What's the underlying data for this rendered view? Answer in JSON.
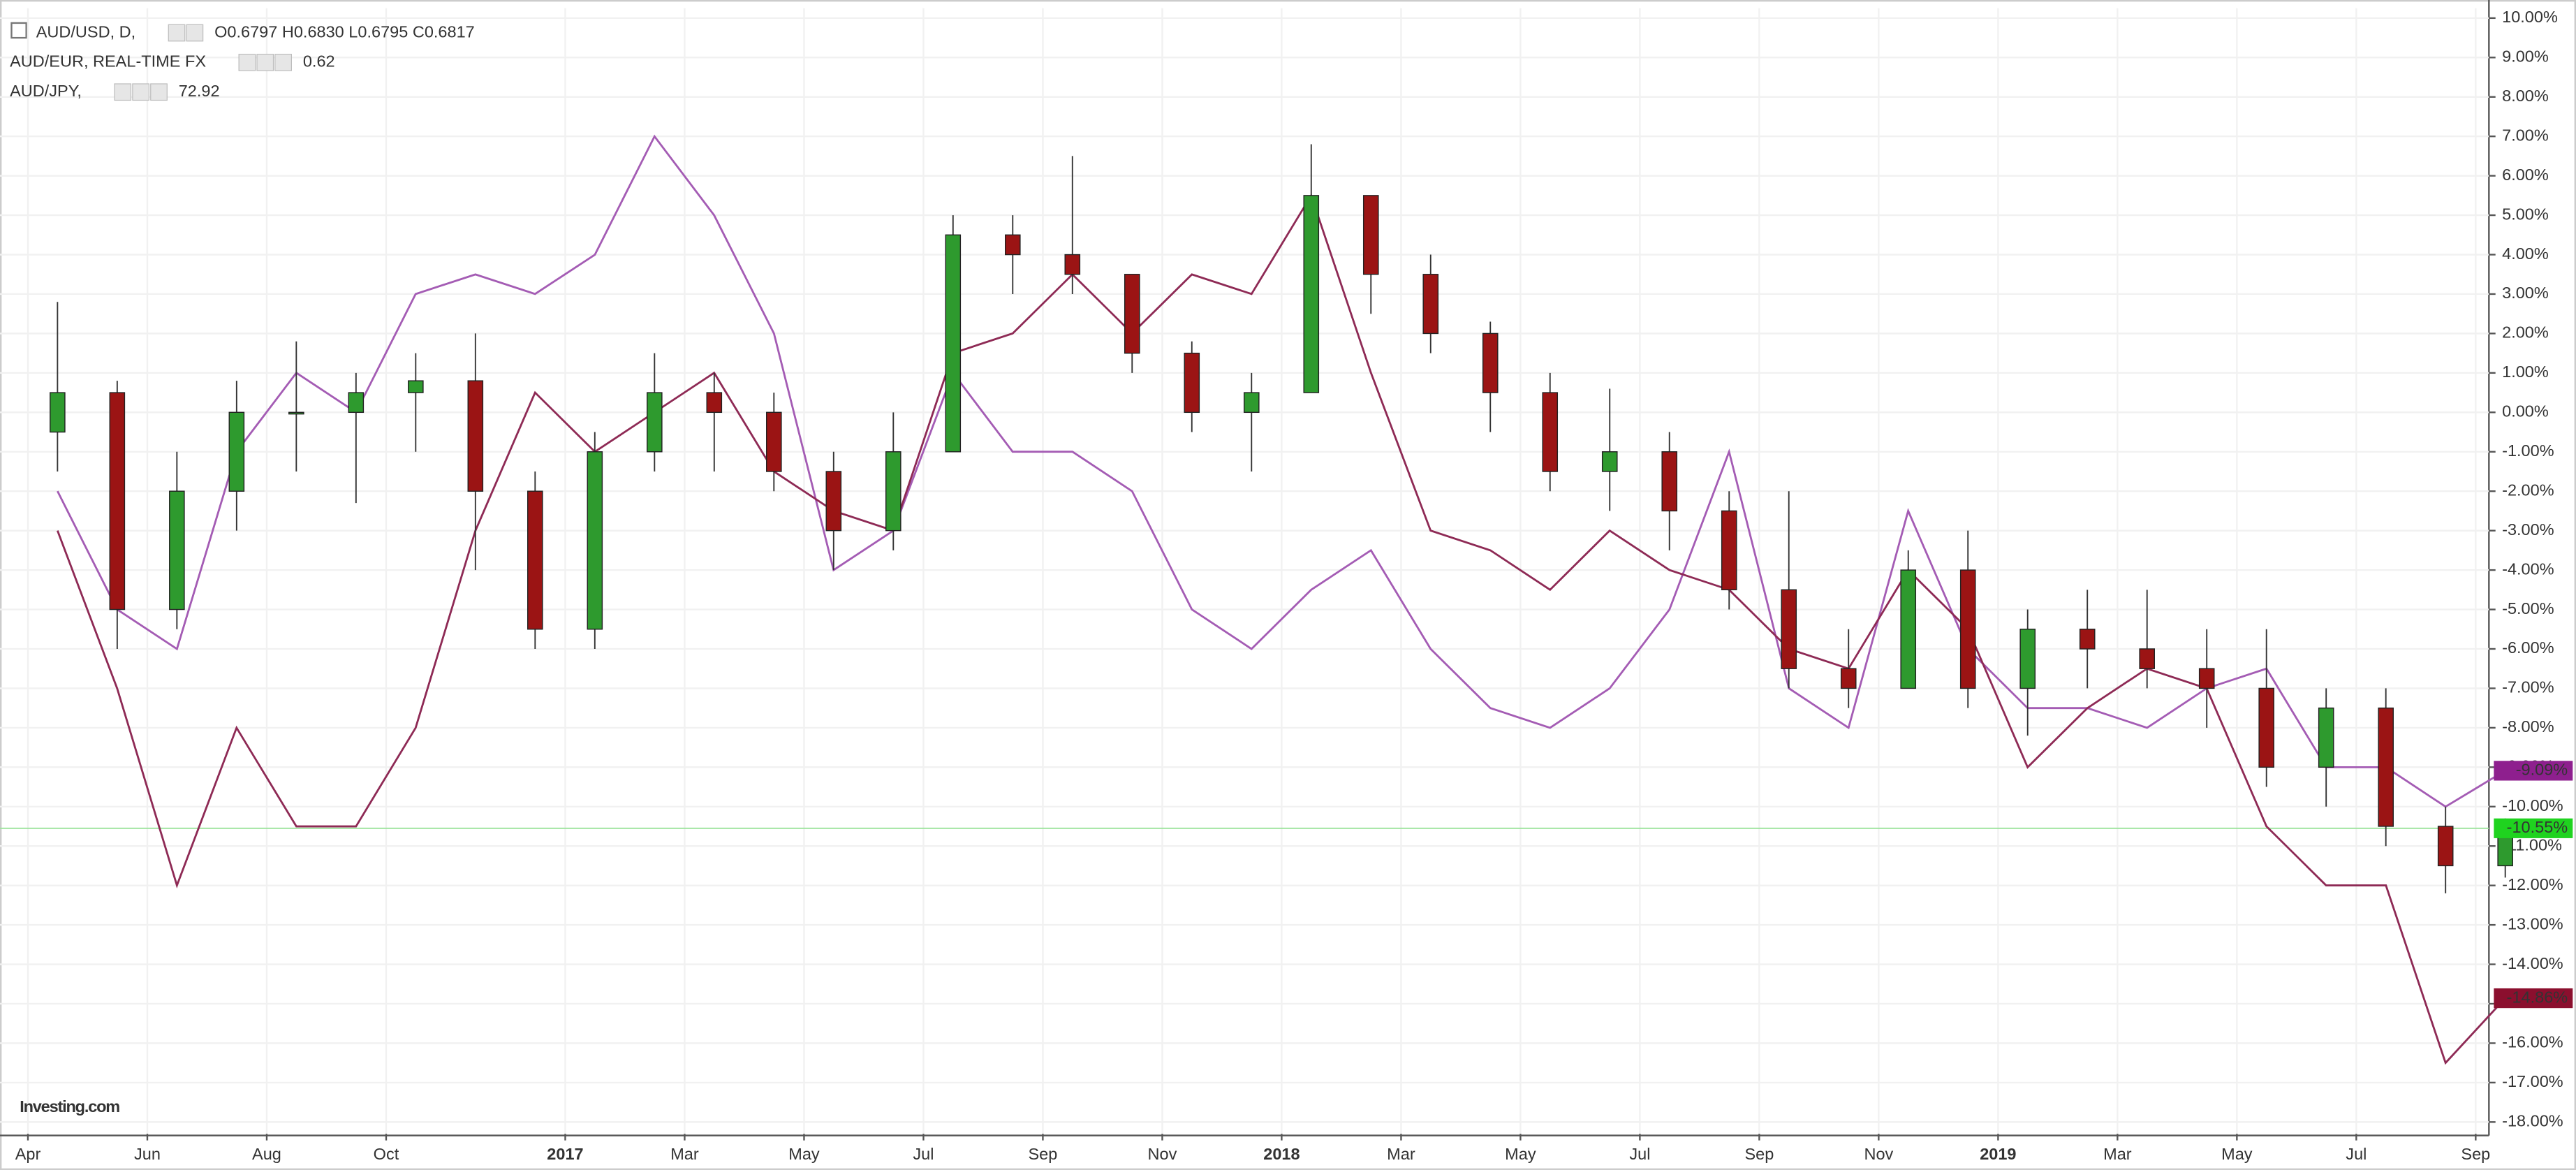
{
  "chart_data": {
    "type": "candlestick",
    "header": [
      {
        "label": "AUD/USD, D,",
        "quote": "O0.6797 H0.6830 L0.6795 C0.6817",
        "color": "#1b4d1b"
      },
      {
        "label": "AUD/EUR, REAL-TIME FX",
        "quote": "0.62",
        "color": "#8e3e9e"
      },
      {
        "label": "AUD/JPY,",
        "quote": "72.92",
        "color": "#7a1030"
      }
    ],
    "logo": "Investing.com",
    "x": [
      "2016-04",
      "2016-05",
      "2016-06",
      "2016-07",
      "2016-08",
      "2016-09",
      "2016-10",
      "2016-11",
      "2016-12",
      "2017-01",
      "2017-02",
      "2017-03",
      "2017-04",
      "2017-05",
      "2017-06",
      "2017-07",
      "2017-08",
      "2017-09",
      "2017-10",
      "2017-11",
      "2017-12",
      "2018-01",
      "2018-02",
      "2018-03",
      "2018-04",
      "2018-05",
      "2018-06",
      "2018-07",
      "2018-08",
      "2018-09",
      "2018-10",
      "2018-11",
      "2018-12",
      "2019-01",
      "2019-02",
      "2019-03",
      "2019-04",
      "2019-05",
      "2019-06",
      "2019-07",
      "2019-08",
      "2019-09"
    ],
    "candles": {
      "up_color": "#2e9a2e",
      "down_color": "#9b1414",
      "open": [
        -0.5,
        0.5,
        -5,
        -2,
        0,
        0,
        0.5,
        0.8,
        -2,
        -5.5,
        -1,
        0.5,
        0,
        -1.5,
        -3,
        -1,
        4.5,
        4,
        3.5,
        1.5,
        0,
        0.5,
        5.5,
        3.5,
        2,
        0.5,
        -1.5,
        -1,
        -2.5,
        -4.5,
        -6.5,
        -7,
        -4,
        -7,
        -5.5,
        -6,
        -6.5,
        -7,
        -9,
        -7.5,
        -10.5,
        -11.5
      ],
      "high": [
        2.8,
        0.8,
        -1,
        0.8,
        1.8,
        1,
        1.5,
        2,
        -1.5,
        -0.5,
        1.5,
        1,
        0.5,
        -1,
        0,
        5,
        5,
        6.5,
        3.5,
        1.8,
        1,
        6.8,
        5.5,
        4,
        2.3,
        1,
        0.6,
        -0.5,
        -2,
        -2,
        -5.5,
        -3.5,
        -3,
        -5,
        -4.5,
        -4.5,
        -5.5,
        -5.5,
        -7,
        -7,
        -10,
        -10.3
      ],
      "low": [
        -1.5,
        -6,
        -5.5,
        -3,
        -1.5,
        -2.3,
        -1,
        -4,
        -6,
        -6,
        -1.5,
        -1.5,
        -2,
        -4,
        -3.5,
        -1,
        3,
        3,
        1,
        -0.5,
        -1.5,
        0.5,
        2.5,
        1.5,
        -0.5,
        -2,
        -2.5,
        -3.5,
        -5,
        -7,
        -7.5,
        -7,
        -7.5,
        -8.2,
        -7,
        -7,
        -8,
        -9.5,
        -10,
        -11,
        -12.2,
        -11.8
      ],
      "close": [
        0.5,
        -5,
        -2,
        0,
        0,
        0.5,
        0.8,
        -2,
        -5.5,
        -1,
        0.5,
        0,
        -1.5,
        -3,
        -1,
        4.5,
        4,
        3.5,
        1.5,
        0,
        0.5,
        5.5,
        3.5,
        2,
        0.5,
        -1.5,
        -1,
        -2.5,
        -4.5,
        -6.5,
        -7,
        -4,
        -7,
        -5.5,
        -6,
        -6.5,
        -7,
        -9,
        -7.5,
        -10.5,
        -11.5,
        -10.55
      ]
    },
    "series": [
      {
        "name": "AUD/EUR",
        "color": "#a45cb4",
        "values": [
          -2,
          -5,
          -6,
          -1,
          1,
          0,
          3,
          3.5,
          3,
          4,
          7,
          5,
          2,
          -4,
          -3,
          1,
          -1,
          -1,
          -2,
          -5,
          -6,
          -4.5,
          -3.5,
          -6,
          -7.5,
          -8,
          -7,
          -5,
          -1,
          -7,
          -8,
          -2.5,
          -6,
          -7.5,
          -7.5,
          -8,
          -7,
          -6.5,
          -9,
          -9,
          -10,
          -9.09
        ]
      },
      {
        "name": "AUD/JPY",
        "color": "#8e2a55",
        "values": [
          -3,
          -7,
          -12,
          -8,
          -10.5,
          -10.5,
          -8,
          -3,
          0.5,
          -1,
          0,
          1,
          -1.5,
          -2.5,
          -3,
          1.5,
          2,
          3.5,
          2,
          3.5,
          3,
          5.5,
          1,
          -3,
          -3.5,
          -4.5,
          -3,
          -4,
          -4.5,
          -6,
          -6.5,
          -4,
          -5.5,
          -9,
          -7.5,
          -6.5,
          -7,
          -10.5,
          -12,
          -12,
          -16.5,
          -14.86
        ]
      }
    ],
    "last_labels": [
      {
        "value": -9.09,
        "label": "-9.09%",
        "color": "#8e1f8e"
      },
      {
        "value": -10.55,
        "label": "-10.55%",
        "color": "#1fd31f"
      },
      {
        "value": -14.86,
        "label": "-14.86%",
        "color": "#8b0f2e"
      }
    ],
    "price_line": -10.55,
    "ylim": [
      -18.3,
      10.25
    ],
    "yticks": [
      {
        "value": 10,
        "label": "10.00%"
      },
      {
        "value": 9,
        "label": "9.00%"
      },
      {
        "value": 8,
        "label": "8.00%"
      },
      {
        "value": 7,
        "label": "7.00%"
      },
      {
        "value": 6,
        "label": "6.00%"
      },
      {
        "value": 5,
        "label": "5.00%"
      },
      {
        "value": 4,
        "label": "4.00%"
      },
      {
        "value": 3,
        "label": "3.00%"
      },
      {
        "value": 2,
        "label": "2.00%"
      },
      {
        "value": 1,
        "label": "1.00%"
      },
      {
        "value": 0,
        "label": "0.00%"
      },
      {
        "value": -1,
        "label": "-1.00%"
      },
      {
        "value": -2,
        "label": "-2.00%"
      },
      {
        "value": -3,
        "label": "-3.00%"
      },
      {
        "value": -4,
        "label": "-4.00%"
      },
      {
        "value": -5,
        "label": "-5.00%"
      },
      {
        "value": -6,
        "label": "-6.00%"
      },
      {
        "value": -7,
        "label": "-7.00%"
      },
      {
        "value": -8,
        "label": "-8.00%"
      },
      {
        "value": -9,
        "label": "-9.00%"
      },
      {
        "value": -10,
        "label": "-10.00%"
      },
      {
        "value": -11,
        "label": "-11.00%"
      },
      {
        "value": -12,
        "label": "-12.00%"
      },
      {
        "value": -13,
        "label": "-13.00%"
      },
      {
        "value": -14,
        "label": "-14.00%"
      },
      {
        "value": -15,
        "label": "-15.00%"
      },
      {
        "value": -16,
        "label": "-16.00%"
      },
      {
        "value": -17,
        "label": "-17.00%"
      },
      {
        "value": -18,
        "label": "-18.00%"
      }
    ],
    "xticks": [
      {
        "value": "2016-04",
        "label": "Apr"
      },
      {
        "value": "2016-06",
        "label": "Jun"
      },
      {
        "value": "2016-08",
        "label": "Aug"
      },
      {
        "value": "2016-10",
        "label": "Oct"
      },
      {
        "value": "2017-01",
        "label": "2017"
      },
      {
        "value": "2017-03",
        "label": "Mar"
      },
      {
        "value": "2017-05",
        "label": "May"
      },
      {
        "value": "2017-07",
        "label": "Jul"
      },
      {
        "value": "2017-09",
        "label": "Sep"
      },
      {
        "value": "2017-11",
        "label": "Nov"
      },
      {
        "value": "2018-01",
        "label": "2018"
      },
      {
        "value": "2018-03",
        "label": "Mar"
      },
      {
        "value": "2018-05",
        "label": "May"
      },
      {
        "value": "2018-07",
        "label": "Jul"
      },
      {
        "value": "2018-09",
        "label": "Sep"
      },
      {
        "value": "2018-11",
        "label": "Nov"
      },
      {
        "value": "2019-01",
        "label": "2019"
      },
      {
        "value": "2019-03",
        "label": "Mar"
      },
      {
        "value": "2019-05",
        "label": "May"
      },
      {
        "value": "2019-07",
        "label": "Jul"
      },
      {
        "value": "2019-09",
        "label": "Sep"
      }
    ],
    "grid": true
  }
}
